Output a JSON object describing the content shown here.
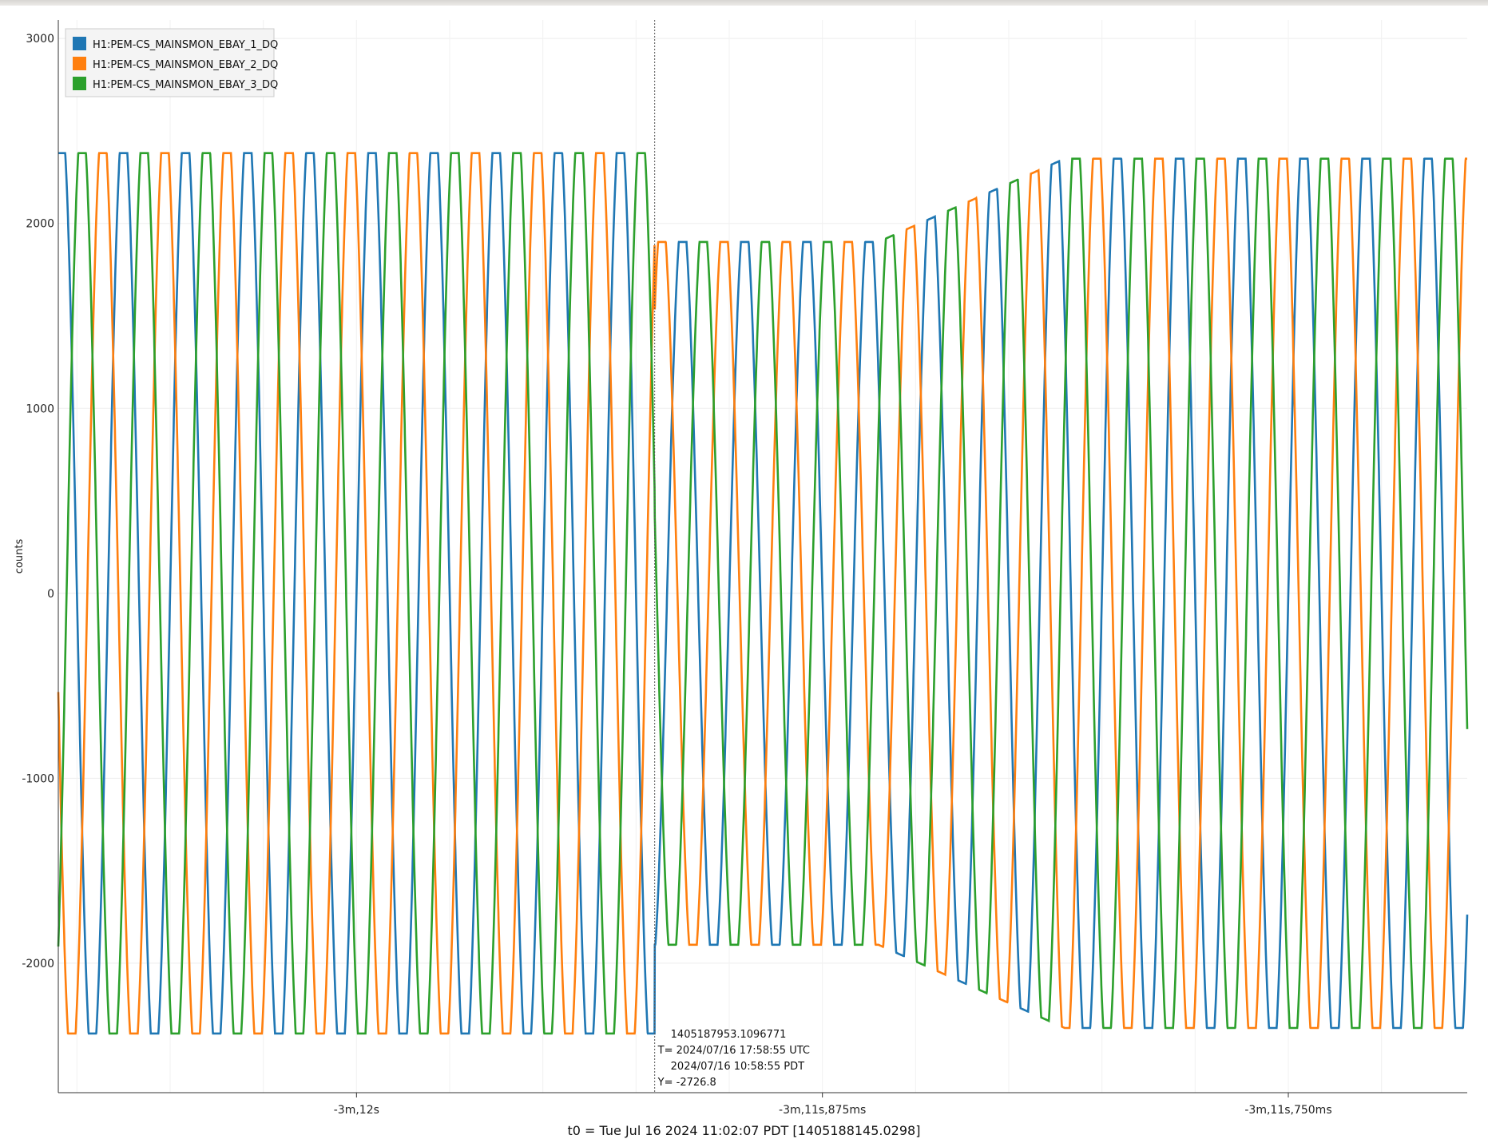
{
  "chart_data": {
    "type": "line",
    "ylabel": "counts",
    "ylim": [
      -2700,
      3100
    ],
    "yticks": [
      3000,
      2000,
      1000,
      0,
      -1000,
      -2000
    ],
    "x_ticks": [
      "-3m,12s",
      "-3m,11s,875ms",
      "-3m,11s,750ms"
    ],
    "x_ticks_seconds": [
      -192.0,
      -191.875,
      -191.75
    ],
    "x_range_seconds": [
      -192.08,
      -191.702
    ],
    "grid": true,
    "legend_position": "top-left",
    "series": [
      {
        "name": "H1:PEM-CS_MAINSMON_EBAY_1_DQ",
        "color": "#1f77b4",
        "amplitude_before": 2380,
        "amplitude_after": 2350,
        "phase_offset_cycles": 0.0
      },
      {
        "name": "H1:PEM-CS_MAINSMON_EBAY_2_DQ",
        "color": "#ff7f0e",
        "amplitude_before": 2380,
        "amplitude_after": 2350,
        "phase_offset_cycles": 0.3333
      },
      {
        "name": "H1:PEM-CS_MAINSMON_EBAY_3_DQ",
        "color": "#2ca02c",
        "amplitude_before": 2380,
        "amplitude_after": 2350,
        "phase_offset_cycles": 0.6667
      }
    ],
    "waveform": {
      "frequency_hz": 60,
      "disturbance_start_seconds": -191.92,
      "disturbance_end_seconds": -191.86,
      "min_amplitude_in_disturbance": 1900
    },
    "cursor": {
      "x_seconds": -191.92,
      "gps": "1405187953.1096771",
      "utc": "T= 2024/07/16 17:58:55 UTC",
      "local": "2024/07/16 10:58:55 PDT",
      "y": "Y= -2726.8"
    },
    "footer": "t0 = Tue Jul 16 2024 11:02:07 PDT [1405188145.0298]"
  }
}
